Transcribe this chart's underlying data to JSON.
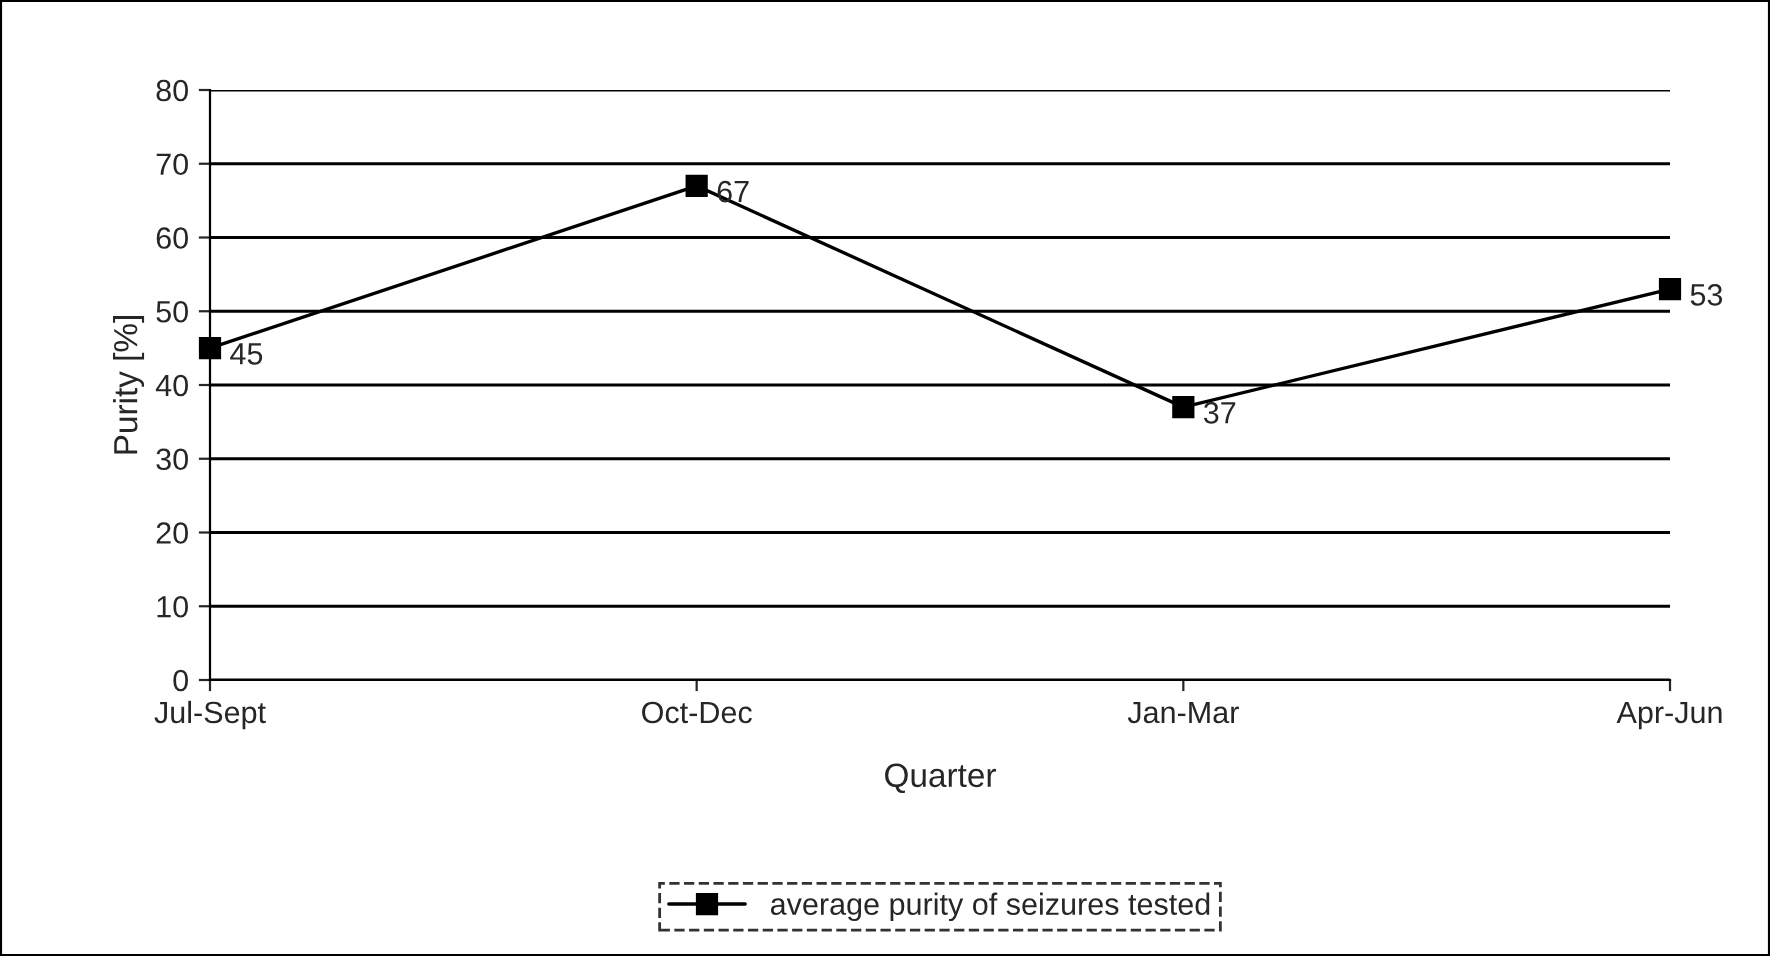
{
  "chart_data": {
    "type": "line",
    "xlabel": "Quarter",
    "ylabel": "Purity [%]",
    "categories": [
      "Jul-Sept",
      "Oct-Dec",
      "Jan-Mar",
      "Apr-Jun"
    ],
    "series": [
      {
        "name": "average purity of seizures tested",
        "color": "#000000",
        "values": [
          45,
          67,
          37,
          53
        ]
      }
    ],
    "ylim": [
      0,
      80
    ],
    "yticks": [
      0,
      10,
      20,
      30,
      40,
      50,
      60,
      70,
      80
    ],
    "grid": "y",
    "legend": "bottom",
    "marker": "square",
    "line_style": "solid",
    "data_labels": true
  }
}
